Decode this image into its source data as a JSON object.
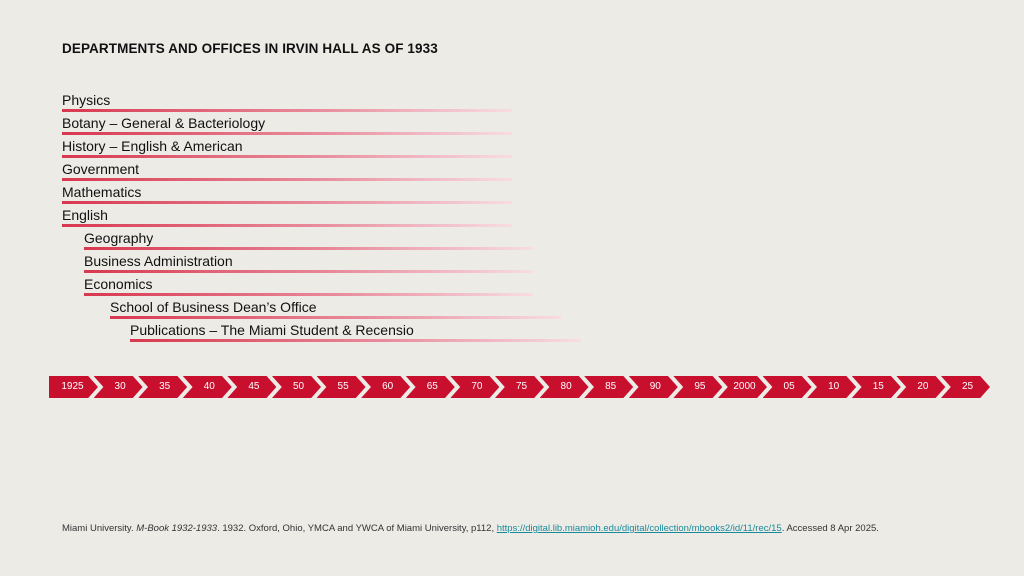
{
  "title": "DEPARTMENTS AND OFFICES IN IRVIN HALL AS OF 1933",
  "departments": [
    {
      "label": "Physics"
    },
    {
      "label": "Botany – General & Bacteriology"
    },
    {
      "label": "History – English & American"
    },
    {
      "label": "Government"
    },
    {
      "label": "Mathematics"
    },
    {
      "label": "English"
    },
    {
      "label": "Geography"
    },
    {
      "label": "Business Administration"
    },
    {
      "label": "Economics"
    },
    {
      "label": "School of Business Dean’s Office"
    },
    {
      "label": "Publications – The Miami Student & Recensio"
    }
  ],
  "timeline": {
    "color": "#c8102e",
    "labels": [
      "1925",
      "30",
      "35",
      "40",
      "45",
      "50",
      "55",
      "60",
      "65",
      "70",
      "75",
      "80",
      "85",
      "90",
      "95",
      "2000",
      "05",
      "10",
      "15",
      "20",
      "25"
    ]
  },
  "citation": {
    "prefix": "Miami University. ",
    "work": "M-Book 1932-1933",
    "middle": ". 1932. Oxford, Ohio, YMCA and YWCA of Miami University, p112, ",
    "link": "https://digital.lib.miamioh.edu/digital/collection/mbooks2/id/11/rec/15",
    "suffix": ". Accessed 8 Apr 2025."
  }
}
